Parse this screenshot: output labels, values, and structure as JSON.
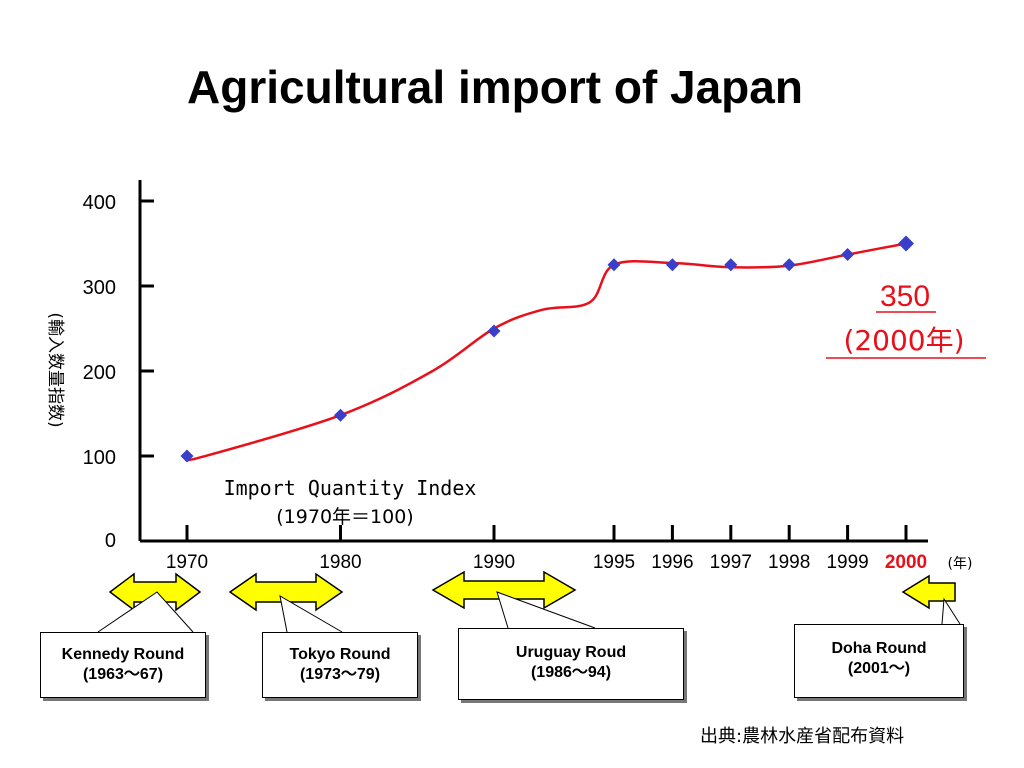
{
  "page": {
    "title": "Agricultural import of Japan",
    "source": "出典:農林水産省配布資料"
  },
  "chart_data": {
    "type": "line",
    "title": "Agricultural import of Japan",
    "ylabel": "(輸入数量指数)",
    "xlabel": "(年)",
    "ylim": [
      0,
      400
    ],
    "yticks": [
      "0",
      "100",
      "200",
      "300",
      "400"
    ],
    "xticks": [
      "1970",
      "1980",
      "1990",
      "1995",
      "1996",
      "1997",
      "1998",
      "1999",
      "2000"
    ],
    "xtick_highlight": "2000",
    "series_label": "Import Quantity Index",
    "series_note": "(1970年＝100)",
    "markers": [
      {
        "x": "1970",
        "y": 100
      },
      {
        "x": "1980",
        "y": 148
      },
      {
        "x": "1990",
        "y": 247
      },
      {
        "x": "1995",
        "y": 325
      },
      {
        "x": "1996",
        "y": 325
      },
      {
        "x": "1997",
        "y": 325
      },
      {
        "x": "1998",
        "y": 325
      },
      {
        "x": "1999",
        "y": 337
      },
      {
        "x": "2000",
        "y": 350
      }
    ],
    "line": [
      {
        "x": "1970",
        "y": 98
      },
      {
        "x": "1971",
        "y": 99
      },
      {
        "x": "1980",
        "y": 148
      },
      {
        "x": "1986",
        "y": 200
      },
      {
        "x": "1990",
        "y": 250
      },
      {
        "x": "1992",
        "y": 272
      },
      {
        "x": "1994",
        "y": 281
      },
      {
        "x": "1995",
        "y": 325
      },
      {
        "x": "1996",
        "y": 327
      },
      {
        "x": "1997",
        "y": 322
      },
      {
        "x": "1998",
        "y": 324
      },
      {
        "x": "1999",
        "y": 337
      },
      {
        "x": "2000",
        "y": 350
      }
    ],
    "annotation": {
      "value": "350",
      "year": "(2000年)"
    },
    "colors": {
      "line": "#e8101a",
      "marker": "#3a3ec8",
      "highlight": "#e8101a",
      "arrow_fill": "#ffff00",
      "axis": "#000000"
    }
  },
  "rounds": [
    {
      "name": "Kennedy Round",
      "years": "(1963〜67)"
    },
    {
      "name": "Tokyo Round",
      "years": "(1973〜79)"
    },
    {
      "name": "Uruguay Roud",
      "years": "(1986〜94)"
    },
    {
      "name": "Doha Round",
      "years": "(2001〜)"
    }
  ]
}
